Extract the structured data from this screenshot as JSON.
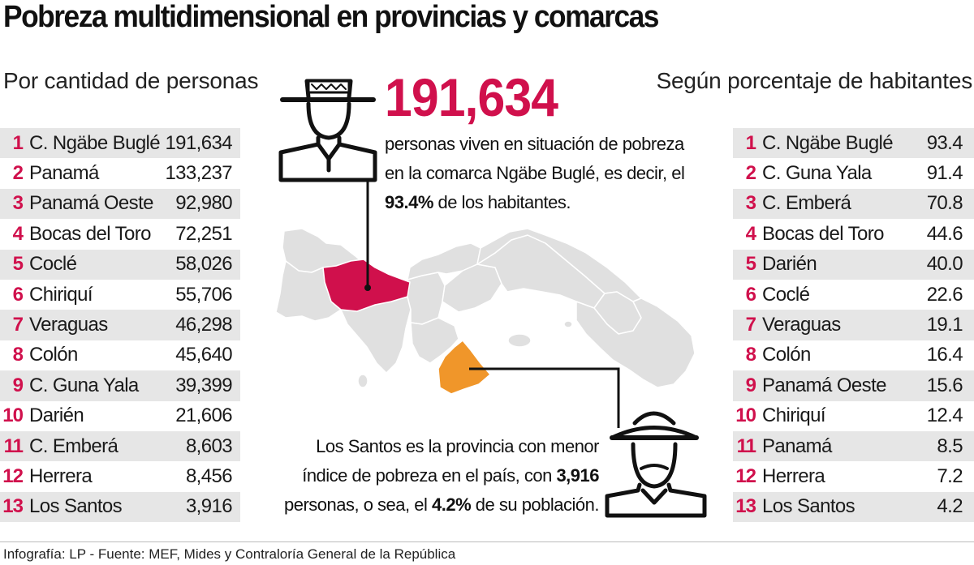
{
  "title": "Pobreza multidimensional en provincias y comarcas",
  "left_table": {
    "heading": "Por cantidad de personas",
    "rows": [
      {
        "rank": "1",
        "name": "C. Ngäbe Buglé",
        "value": "191,634"
      },
      {
        "rank": "2",
        "name": "Panamá",
        "value": "133,237"
      },
      {
        "rank": "3",
        "name": "Panamá Oeste",
        "value": "92,980"
      },
      {
        "rank": "4",
        "name": "Bocas del Toro",
        "value": "72,251"
      },
      {
        "rank": "5",
        "name": "Coclé",
        "value": "58,026"
      },
      {
        "rank": "6",
        "name": "Chiriquí",
        "value": "55,706"
      },
      {
        "rank": "7",
        "name": "Veraguas",
        "value": "46,298"
      },
      {
        "rank": "8",
        "name": "Colón",
        "value": "45,640"
      },
      {
        "rank": "9",
        "name": "C. Guna Yala",
        "value": "39,399"
      },
      {
        "rank": "10",
        "name": "Darién",
        "value": "21,606"
      },
      {
        "rank": "11",
        "name": "C. Emberá",
        "value": "8,603"
      },
      {
        "rank": "12",
        "name": "Herrera",
        "value": "8,456"
      },
      {
        "rank": "13",
        "name": "Los Santos",
        "value": "3,916"
      }
    ]
  },
  "right_table": {
    "heading": "Según porcentaje de habitantes",
    "rows": [
      {
        "rank": "1",
        "name": "C. Ngäbe Buglé",
        "value": "93.4"
      },
      {
        "rank": "2",
        "name": "C. Guna Yala",
        "value": "91.4"
      },
      {
        "rank": "3",
        "name": "C. Emberá",
        "value": "70.8"
      },
      {
        "rank": "4",
        "name": "Bocas del Toro",
        "value": "44.6"
      },
      {
        "rank": "5",
        "name": "Darién",
        "value": "40.0"
      },
      {
        "rank": "6",
        "name": "Coclé",
        "value": "22.6"
      },
      {
        "rank": "7",
        "name": "Veraguas",
        "value": "19.1"
      },
      {
        "rank": "8",
        "name": "Colón",
        "value": "16.4"
      },
      {
        "rank": "9",
        "name": "Panamá Oeste",
        "value": "15.6"
      },
      {
        "rank": "10",
        "name": "Chiriquí",
        "value": "12.4"
      },
      {
        "rank": "11",
        "name": "Panamá",
        "value": "8.5"
      },
      {
        "rank": "12",
        "name": "Herrera",
        "value": "7.2"
      },
      {
        "rank": "13",
        "name": "Los Santos",
        "value": "4.2"
      }
    ]
  },
  "highlight_top": {
    "number": "191,634",
    "line1": "personas viven en situación de pobreza",
    "line2": "en la comarca Ngäbe Buglé, es decir, el",
    "line3_bold": "93.4%",
    "line3_rest": " de los habitantes."
  },
  "highlight_bottom": {
    "line1": "Los Santos es la provincia con menor",
    "line2_pre": "índice de pobreza en el país, con ",
    "line2_bold": "3,916",
    "line3_pre": "personas, o sea, el ",
    "line3_bold": "4.2%",
    "line3_post": " de su población."
  },
  "footer": "Infografía: LP - Fuente: MEF, Mides y Contraloría General de la República",
  "colors": {
    "accent": "#d0104c",
    "map_highlight_top": "#d0104c",
    "map_highlight_bottom": "#f0962a",
    "map_base": "#e0e0e0",
    "row_shade": "#e6e6e6"
  },
  "icons": [
    "indigenous-man-with-hat-icon",
    "farmer-with-sombrero-icon",
    "panama-map"
  ],
  "chart_data": [
    {
      "type": "table",
      "title": "Por cantidad de personas",
      "categories": [
        "C. Ngäbe Buglé",
        "Panamá",
        "Panamá Oeste",
        "Bocas del Toro",
        "Coclé",
        "Chiriquí",
        "Veraguas",
        "Colón",
        "C. Guna Yala",
        "Darién",
        "C. Emberá",
        "Herrera",
        "Los Santos"
      ],
      "values": [
        191634,
        133237,
        92980,
        72251,
        58026,
        55706,
        46298,
        45640,
        39399,
        21606,
        8603,
        8456,
        3916
      ]
    },
    {
      "type": "table",
      "title": "Según porcentaje de habitantes",
      "categories": [
        "C. Ngäbe Buglé",
        "C. Guna Yala",
        "C. Emberá",
        "Bocas del Toro",
        "Darién",
        "Coclé",
        "Veraguas",
        "Colón",
        "Panamá Oeste",
        "Chiriquí",
        "Panamá",
        "Herrera",
        "Los Santos"
      ],
      "values": [
        93.4,
        91.4,
        70.8,
        44.6,
        40.0,
        22.6,
        19.1,
        16.4,
        15.6,
        12.4,
        8.5,
        7.2,
        4.2
      ]
    }
  ]
}
